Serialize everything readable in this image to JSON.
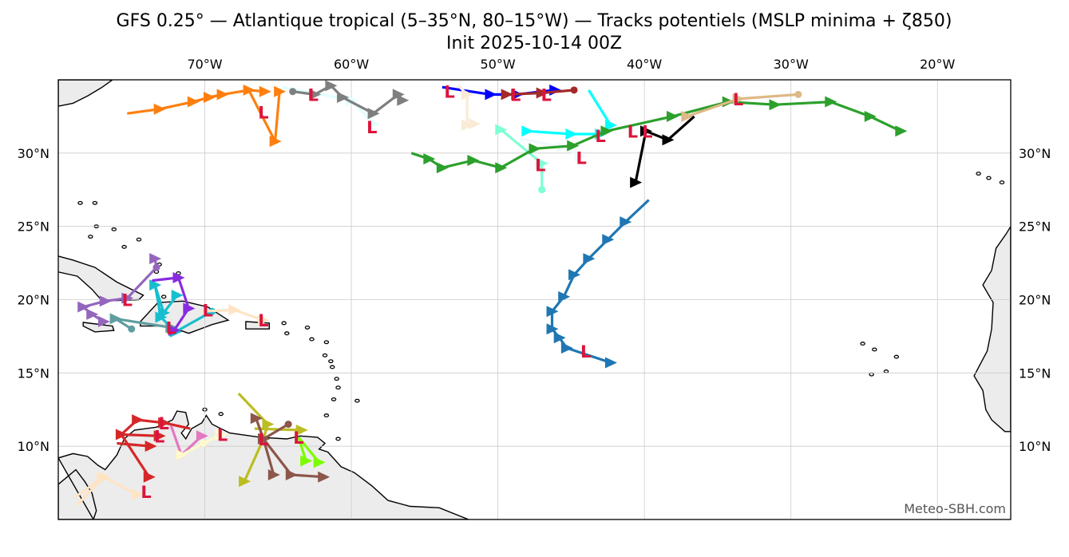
{
  "title": {
    "line1": "GFS 0.25° — Atlantique tropical (5–35°N, 80–15°W) — Tracks potentiels (MSLP minima + ζ850)",
    "line2": "Init 2025-10-14 00Z"
  },
  "credit": "Meteo-SBH.com",
  "map": {
    "extent": {
      "lon": [
        -80,
        -15
      ],
      "lat": [
        5,
        35
      ]
    },
    "lon_ticks": [
      {
        "value": -70,
        "label": "70°W"
      },
      {
        "value": -60,
        "label": "60°W"
      },
      {
        "value": -50,
        "label": "50°W"
      },
      {
        "value": -40,
        "label": "40°W"
      },
      {
        "value": -30,
        "label": "30°W"
      },
      {
        "value": -20,
        "label": "20°W"
      }
    ],
    "lat_ticks": [
      {
        "value": 10,
        "label": "10°N"
      },
      {
        "value": 15,
        "label": "15°N"
      },
      {
        "value": 20,
        "label": "20°N"
      },
      {
        "value": 25,
        "label": "25°N"
      },
      {
        "value": 30,
        "label": "30°N"
      }
    ],
    "land_color": "#ececec",
    "low_marker": {
      "label": "L",
      "color": "#dc143c"
    }
  },
  "tracks": [
    {
      "color": "#ff7f0e",
      "start_dot": false,
      "segments": [
        [
          [
            -75.3,
            32.7
          ],
          [
            -73.1,
            33.0
          ],
          [
            -70.8,
            33.5
          ],
          [
            -69.7,
            33.8
          ],
          [
            -68.8,
            34.0
          ],
          [
            -67.0,
            34.3
          ],
          [
            -65.9,
            34.2
          ]
        ],
        [
          [
            -67.0,
            34.3
          ],
          [
            -65.2,
            30.8
          ],
          [
            -64.9,
            34.2
          ]
        ]
      ]
    },
    {
      "color": "#e0ffff",
      "start_dot": false,
      "segments": [
        [
          [
            -64.7,
            34.5
          ],
          [
            -60.0,
            33.6
          ],
          [
            -58.5,
            32.0
          ]
        ]
      ]
    },
    {
      "color": "#7f7f7f",
      "start_dot": true,
      "segments": [
        [
          [
            -64.0,
            34.2
          ],
          [
            -62.5,
            34.0
          ],
          [
            -61.4,
            34.6
          ],
          [
            -60.6,
            33.8
          ],
          [
            -58.5,
            32.7
          ],
          [
            -56.8,
            34.0
          ],
          [
            -56.5,
            33.6
          ]
        ]
      ]
    },
    {
      "color": "#0000ff",
      "start_dot": false,
      "segments": [
        [
          [
            -53.8,
            34.5
          ],
          [
            -50.5,
            34.0
          ],
          [
            -48.7,
            34.0
          ],
          [
            -46.1,
            34.3
          ]
        ]
      ]
    },
    {
      "color": "#a52a2a",
      "start_dot": true,
      "segments": [
        [
          [
            -44.8,
            34.3
          ],
          [
            -47.0,
            34.1
          ],
          [
            -49.4,
            34.0
          ]
        ]
      ]
    },
    {
      "color": "#faebd7",
      "start_dot": false,
      "segments": [
        [
          [
            -52.7,
            34.6
          ],
          [
            -52.1,
            34.0
          ],
          [
            -52.1,
            31.9
          ],
          [
            -51.6,
            32.0
          ]
        ]
      ]
    },
    {
      "color": "#00ffff",
      "start_dot": false,
      "segments": [
        [
          [
            -43.8,
            34.3
          ],
          [
            -42.3,
            31.9
          ],
          [
            -43.0,
            31.3
          ],
          [
            -45.0,
            31.3
          ],
          [
            -48.0,
            31.5
          ]
        ]
      ]
    },
    {
      "color": "#7fffd4",
      "start_dot": true,
      "segments": [
        [
          [
            -47.0,
            27.5
          ],
          [
            -47.0,
            29.3
          ],
          [
            -49.8,
            31.6
          ]
        ]
      ]
    },
    {
      "color": "#f0f8ff",
      "start_dot": false,
      "segments": [
        [
          [
            -48.5,
            31.0
          ],
          [
            -45.6,
            30.4
          ],
          [
            -44.4,
            29.8
          ]
        ]
      ]
    },
    {
      "color": "#2ca02c",
      "start_dot": false,
      "segments": [
        [
          [
            -55.9,
            30.0
          ],
          [
            -54.7,
            29.6
          ],
          [
            -53.8,
            29.0
          ],
          [
            -51.7,
            29.5
          ],
          [
            -49.8,
            29.0
          ],
          [
            -47.5,
            30.3
          ],
          [
            -44.9,
            30.5
          ],
          [
            -42.6,
            31.5
          ],
          [
            -38.1,
            32.5
          ],
          [
            -34.3,
            33.5
          ],
          [
            -31.1,
            33.3
          ],
          [
            -27.3,
            33.5
          ],
          [
            -24.6,
            32.5
          ],
          [
            -22.5,
            31.5
          ]
        ]
      ]
    },
    {
      "color": "#deb887",
      "start_dot": true,
      "segments": [
        [
          [
            -29.5,
            34.0
          ],
          [
            -33.6,
            33.7
          ],
          [
            -37.1,
            32.5
          ]
        ]
      ]
    },
    {
      "color": "#000000",
      "start_dot": false,
      "segments": [
        [
          [
            -36.6,
            32.5
          ],
          [
            -38.4,
            30.9
          ],
          [
            -39.9,
            31.5
          ],
          [
            -40.6,
            28.0
          ]
        ]
      ]
    },
    {
      "color": "#1f77b4",
      "start_dot": false,
      "segments": [
        [
          [
            -39.7,
            26.8
          ],
          [
            -41.3,
            25.3
          ],
          [
            -42.5,
            24.1
          ],
          [
            -43.8,
            22.8
          ],
          [
            -44.8,
            21.7
          ],
          [
            -45.5,
            20.2
          ],
          [
            -46.3,
            19.2
          ],
          [
            -46.3,
            18.0
          ],
          [
            -45.8,
            17.4
          ],
          [
            -45.3,
            16.7
          ],
          [
            -42.3,
            15.7
          ]
        ]
      ]
    },
    {
      "color": "#9467bd",
      "start_dot": true,
      "segments": [
        [
          [
            -73.3,
            22.2
          ],
          [
            -73.4,
            22.8
          ]
        ],
        [
          [
            -73.3,
            22.2
          ],
          [
            -75.3,
            20.1
          ],
          [
            -76.8,
            19.9
          ],
          [
            -78.3,
            19.5
          ],
          [
            -77.7,
            19.0
          ],
          [
            -76.9,
            18.5
          ]
        ]
      ]
    },
    {
      "color": "#5f9ea0",
      "start_dot": true,
      "segments": [
        [
          [
            -75.0,
            18.0
          ],
          [
            -76.1,
            18.7
          ],
          [
            -72.3,
            18.1
          ]
        ]
      ]
    },
    {
      "color": "#17becf",
      "start_dot": true,
      "segments": [
        [
          [
            -69.5,
            19.2
          ],
          [
            -72.0,
            17.8
          ],
          [
            -73.0,
            18.8
          ],
          [
            -73.4,
            21.0
          ],
          [
            -72.8,
            19.1
          ],
          [
            -71.9,
            20.3
          ]
        ]
      ]
    },
    {
      "color": "#8a2be2",
      "start_dot": false,
      "segments": [
        [
          [
            -73.6,
            21.3
          ],
          [
            -71.8,
            21.5
          ],
          [
            -71.1,
            19.4
          ],
          [
            -72.1,
            17.9
          ]
        ]
      ]
    },
    {
      "color": "#ffe4c4",
      "start_dot": false,
      "segments": [
        [
          [
            -70.2,
            19.2
          ],
          [
            -68.0,
            19.3
          ],
          [
            -66.0,
            18.6
          ]
        ],
        [
          [
            -78.9,
            6.5
          ],
          [
            -76.9,
            7.9
          ],
          [
            -74.6,
            6.7
          ]
        ],
        [
          [
            -78.7,
            6.0
          ],
          [
            -77.0,
            7.8
          ]
        ]
      ]
    },
    {
      "color": "#d62728",
      "start_dot": false,
      "segments": [
        [
          [
            -72.8,
            11.6
          ],
          [
            -74.6,
            11.8
          ],
          [
            -75.7,
            10.8
          ],
          [
            -73.1,
            10.7
          ]
        ],
        [
          [
            -76.0,
            10.2
          ],
          [
            -73.7,
            10.0
          ]
        ],
        [
          [
            -75.7,
            10.8
          ],
          [
            -73.8,
            7.9
          ]
        ],
        [
          [
            -71.0,
            11.2
          ],
          [
            -72.8,
            11.6
          ]
        ]
      ]
    },
    {
      "color": "#e377c2",
      "start_dot": false,
      "segments": [
        [
          [
            -72.3,
            11.4
          ],
          [
            -71.6,
            9.4
          ],
          [
            -70.2,
            10.7
          ]
        ]
      ]
    },
    {
      "color": "#fffacd",
      "start_dot": true,
      "segments": [
        [
          [
            -70.1,
            10.2
          ],
          [
            -71.6,
            9.4
          ]
        ],
        [
          [
            -70.1,
            10.2
          ],
          [
            -68.9,
            10.8
          ]
        ]
      ]
    },
    {
      "color": "#bcbd22",
      "start_dot": false,
      "segments": [
        [
          [
            -67.7,
            13.6
          ],
          [
            -65.7,
            11.5
          ],
          [
            -66.0,
            10.5
          ],
          [
            -67.3,
            7.6
          ]
        ],
        [
          [
            -66.6,
            11.2
          ],
          [
            -63.4,
            11.1
          ]
        ]
      ]
    },
    {
      "color": "#8c564b",
      "start_dot": true,
      "segments": [
        [
          [
            -64.3,
            11.5
          ],
          [
            -66.0,
            10.5
          ],
          [
            -66.5,
            11.9
          ]
        ],
        [
          [
            -66.0,
            10.5
          ],
          [
            -65.3,
            8.05
          ]
        ],
        [
          [
            -66.0,
            10.5
          ],
          [
            -64.1,
            8.05
          ],
          [
            -61.9,
            7.9
          ]
        ]
      ]
    },
    {
      "color": "#7cfc00",
      "start_dot": false,
      "segments": [
        [
          [
            -63.6,
            10.6
          ],
          [
            -62.2,
            8.9
          ]
        ],
        [
          [
            -63.6,
            10.6
          ],
          [
            -63.1,
            9.0
          ]
        ]
      ]
    }
  ],
  "lows": [
    [
      -66.0,
      32.8
    ],
    [
      -62.6,
      34.0
    ],
    [
      -58.6,
      31.8
    ],
    [
      -53.3,
      34.2
    ],
    [
      -48.8,
      34.0
    ],
    [
      -46.7,
      34.0
    ],
    [
      -43.0,
      31.2
    ],
    [
      -47.1,
      29.2
    ],
    [
      -44.3,
      29.7
    ],
    [
      -40.8,
      31.5
    ],
    [
      -39.8,
      31.5
    ],
    [
      -33.6,
      33.7
    ],
    [
      -44.0,
      16.5
    ],
    [
      -75.3,
      20.0
    ],
    [
      -69.8,
      19.3
    ],
    [
      -72.3,
      18.1
    ],
    [
      -66.0,
      18.6
    ],
    [
      -72.8,
      11.6
    ],
    [
      -73.1,
      10.7
    ],
    [
      -68.8,
      10.8
    ],
    [
      -66.0,
      10.5
    ],
    [
      -63.6,
      10.6
    ],
    [
      -74.0,
      6.9
    ]
  ]
}
